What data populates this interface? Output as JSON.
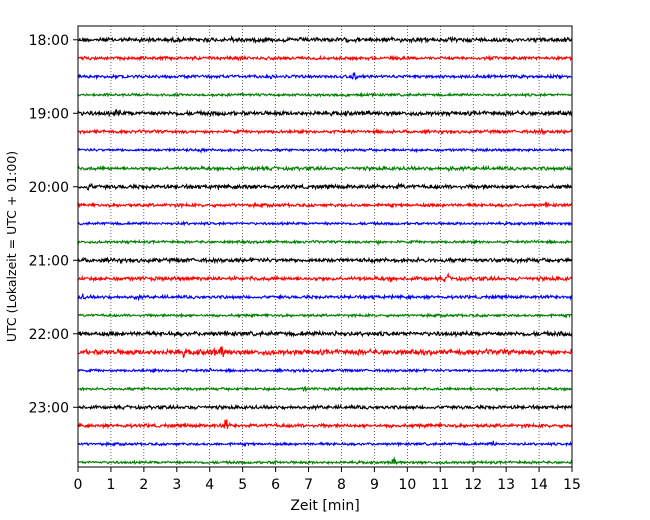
{
  "chart_data": {
    "type": "line",
    "title": "",
    "xlabel": "Zeit  [min]",
    "ylabel": "UTC (Lokalzeit = UTC + 01:00)",
    "xlim": [
      0,
      15
    ],
    "x_ticks": [
      "0",
      "1",
      "2",
      "3",
      "4",
      "5",
      "6",
      "7",
      "8",
      "9",
      "10",
      "11",
      "12",
      "13",
      "14",
      "15"
    ],
    "y_ticks": [
      "18:00",
      "19:00",
      "20:00",
      "21:00",
      "22:00",
      "23:00"
    ],
    "grid": "vertical dotted",
    "trace_interval_min": 15,
    "colors": [
      "#000000",
      "#ff0000",
      "#0000ff",
      "#008000"
    ],
    "traces": [
      {
        "start": "18:00",
        "color": "#000000",
        "amplitude": 2.5,
        "events": [
          {
            "x": 3.8,
            "a": 4
          },
          {
            "x": 4.7,
            "a": 4
          },
          {
            "x": 12.7,
            "a": 4
          }
        ]
      },
      {
        "start": "18:15",
        "color": "#ff0000",
        "amplitude": 1.8,
        "events": [
          {
            "x": 4.8,
            "a": 3
          },
          {
            "x": 13.2,
            "a": 3
          }
        ]
      },
      {
        "start": "18:30",
        "color": "#0000ff",
        "amplitude": 1.8,
        "events": [
          {
            "x": 5.9,
            "a": 3
          },
          {
            "x": 8.4,
            "a": 6
          }
        ]
      },
      {
        "start": "18:45",
        "color": "#008000",
        "amplitude": 1.5,
        "events": [
          {
            "x": 9.0,
            "a": 3
          }
        ]
      },
      {
        "start": "19:00",
        "color": "#000000",
        "amplitude": 2.5,
        "events": [
          {
            "x": 1.2,
            "a": 6
          },
          {
            "x": 4.0,
            "a": 3
          },
          {
            "x": 13.2,
            "a": 4
          }
        ]
      },
      {
        "start": "19:15",
        "color": "#ff0000",
        "amplitude": 1.8,
        "events": [
          {
            "x": 14.1,
            "a": 4
          }
        ]
      },
      {
        "start": "19:30",
        "color": "#0000ff",
        "amplitude": 1.5,
        "events": [
          {
            "x": 3.8,
            "a": 3
          }
        ]
      },
      {
        "start": "19:45",
        "color": "#008000",
        "amplitude": 2.0,
        "events": [
          {
            "x": 5.5,
            "a": 4
          },
          {
            "x": 11.3,
            "a": 4
          }
        ]
      },
      {
        "start": "20:00",
        "color": "#000000",
        "amplitude": 2.3,
        "events": [
          {
            "x": 0.35,
            "a": 6
          },
          {
            "x": 5.1,
            "a": 4
          },
          {
            "x": 9.8,
            "a": 4
          },
          {
            "x": 12.4,
            "a": 3
          }
        ]
      },
      {
        "start": "20:15",
        "color": "#ff0000",
        "amplitude": 1.8,
        "events": [
          {
            "x": 14.2,
            "a": 3
          }
        ]
      },
      {
        "start": "20:30",
        "color": "#0000ff",
        "amplitude": 1.5,
        "events": [
          {
            "x": 3.2,
            "a": 3
          }
        ]
      },
      {
        "start": "20:45",
        "color": "#008000",
        "amplitude": 1.5,
        "events": [
          {
            "x": 9.1,
            "a": 3
          },
          {
            "x": 13.9,
            "a": 3
          }
        ]
      },
      {
        "start": "21:00",
        "color": "#000000",
        "amplitude": 2.3,
        "events": [
          {
            "x": 1.0,
            "a": 3
          },
          {
            "x": 10.3,
            "a": 3
          },
          {
            "x": 13.7,
            "a": 3
          }
        ]
      },
      {
        "start": "21:15",
        "color": "#ff0000",
        "amplitude": 2.2,
        "events": [
          {
            "x": 9.5,
            "a": 4
          },
          {
            "x": 11.2,
            "a": 6
          }
        ]
      },
      {
        "start": "21:30",
        "color": "#0000ff",
        "amplitude": 1.8,
        "events": [
          {
            "x": 0.15,
            "a": 4
          },
          {
            "x": 1.8,
            "a": 4
          },
          {
            "x": 9.0,
            "a": 3
          }
        ]
      },
      {
        "start": "21:45",
        "color": "#008000",
        "amplitude": 1.5,
        "events": [
          {
            "x": 3.1,
            "a": 3
          }
        ]
      },
      {
        "start": "22:00",
        "color": "#000000",
        "amplitude": 2.5,
        "events": [
          {
            "x": 0.1,
            "a": 3
          },
          {
            "x": 7.8,
            "a": 4
          },
          {
            "x": 14.7,
            "a": 4
          }
        ]
      },
      {
        "start": "22:15",
        "color": "#ff0000",
        "amplitude": 3.0,
        "events": [
          {
            "x": 3.2,
            "a": 6
          },
          {
            "x": 4.1,
            "a": 6
          },
          {
            "x": 4.4,
            "a": 10
          }
        ]
      },
      {
        "start": "22:30",
        "color": "#0000ff",
        "amplitude": 1.5,
        "events": [
          {
            "x": 4.0,
            "a": 3
          }
        ]
      },
      {
        "start": "22:45",
        "color": "#008000",
        "amplitude": 1.5,
        "events": [
          {
            "x": 2.1,
            "a": 3
          },
          {
            "x": 6.9,
            "a": 3
          }
        ]
      },
      {
        "start": "23:00",
        "color": "#000000",
        "amplitude": 2.0,
        "events": [
          {
            "x": 3.4,
            "a": 3
          }
        ]
      },
      {
        "start": "23:15",
        "color": "#ff0000",
        "amplitude": 2.0,
        "events": [
          {
            "x": 4.5,
            "a": 9
          },
          {
            "x": 10.8,
            "a": 3
          }
        ]
      },
      {
        "start": "23:30",
        "color": "#0000ff",
        "amplitude": 1.5,
        "events": [
          {
            "x": 12.6,
            "a": 4
          }
        ]
      },
      {
        "start": "23:45",
        "color": "#008000",
        "amplitude": 1.5,
        "events": [
          {
            "x": 9.6,
            "a": 5
          },
          {
            "x": 6.0,
            "a": 3
          }
        ]
      }
    ]
  }
}
